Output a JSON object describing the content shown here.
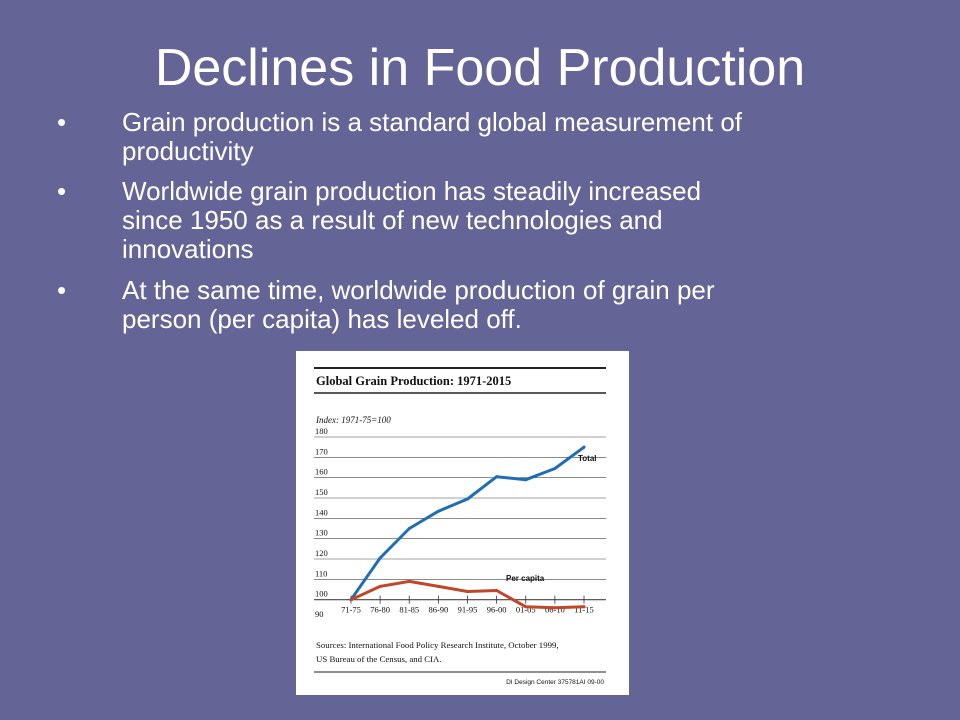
{
  "slide": {
    "title": "Declines in Food Production",
    "bullets": [
      {
        "marker": "•",
        "lines": [
          "Grain production is a standard global measurement of",
          "productivity"
        ]
      },
      {
        "marker": "•",
        "lines": [
          "Worldwide grain production has steadily increased",
          "since 1950 as a result of new technologies and",
          "innovations"
        ]
      },
      {
        "marker": "•",
        "lines": [
          "At the same time, worldwide production of grain per",
          "person (per capita) has leveled off."
        ]
      }
    ]
  },
  "chart_data": {
    "type": "line",
    "title": "Global Grain Production: 1971-2015",
    "subtitle": "Index: 1971-75=100",
    "x": [
      "71-75",
      "76-80",
      "81-85",
      "86-90",
      "91-95",
      "96-00",
      "01-05",
      "06-10",
      "11-15"
    ],
    "y_ticks": [
      180,
      170,
      160,
      150,
      140,
      130,
      120,
      110,
      100,
      90
    ],
    "ylim": [
      90,
      180
    ],
    "series": [
      {
        "name": "Total",
        "color": "#1f6db5",
        "values": [
          100,
          120.5,
          135,
          143.5,
          149.5,
          160.5,
          159,
          164.5,
          175
        ]
      },
      {
        "name": "Per capita",
        "color": "#c0472a",
        "values": [
          100,
          106.5,
          109,
          106.5,
          104,
          104.5,
          96.5,
          96,
          96.5
        ]
      }
    ],
    "grid": true,
    "sources": [
      "Sources: International Food Policy Research Institute, October 1999,",
      "US Bureau of the Census, and CIA."
    ],
    "credit": "DI Design Center  375781AI 09-00"
  }
}
